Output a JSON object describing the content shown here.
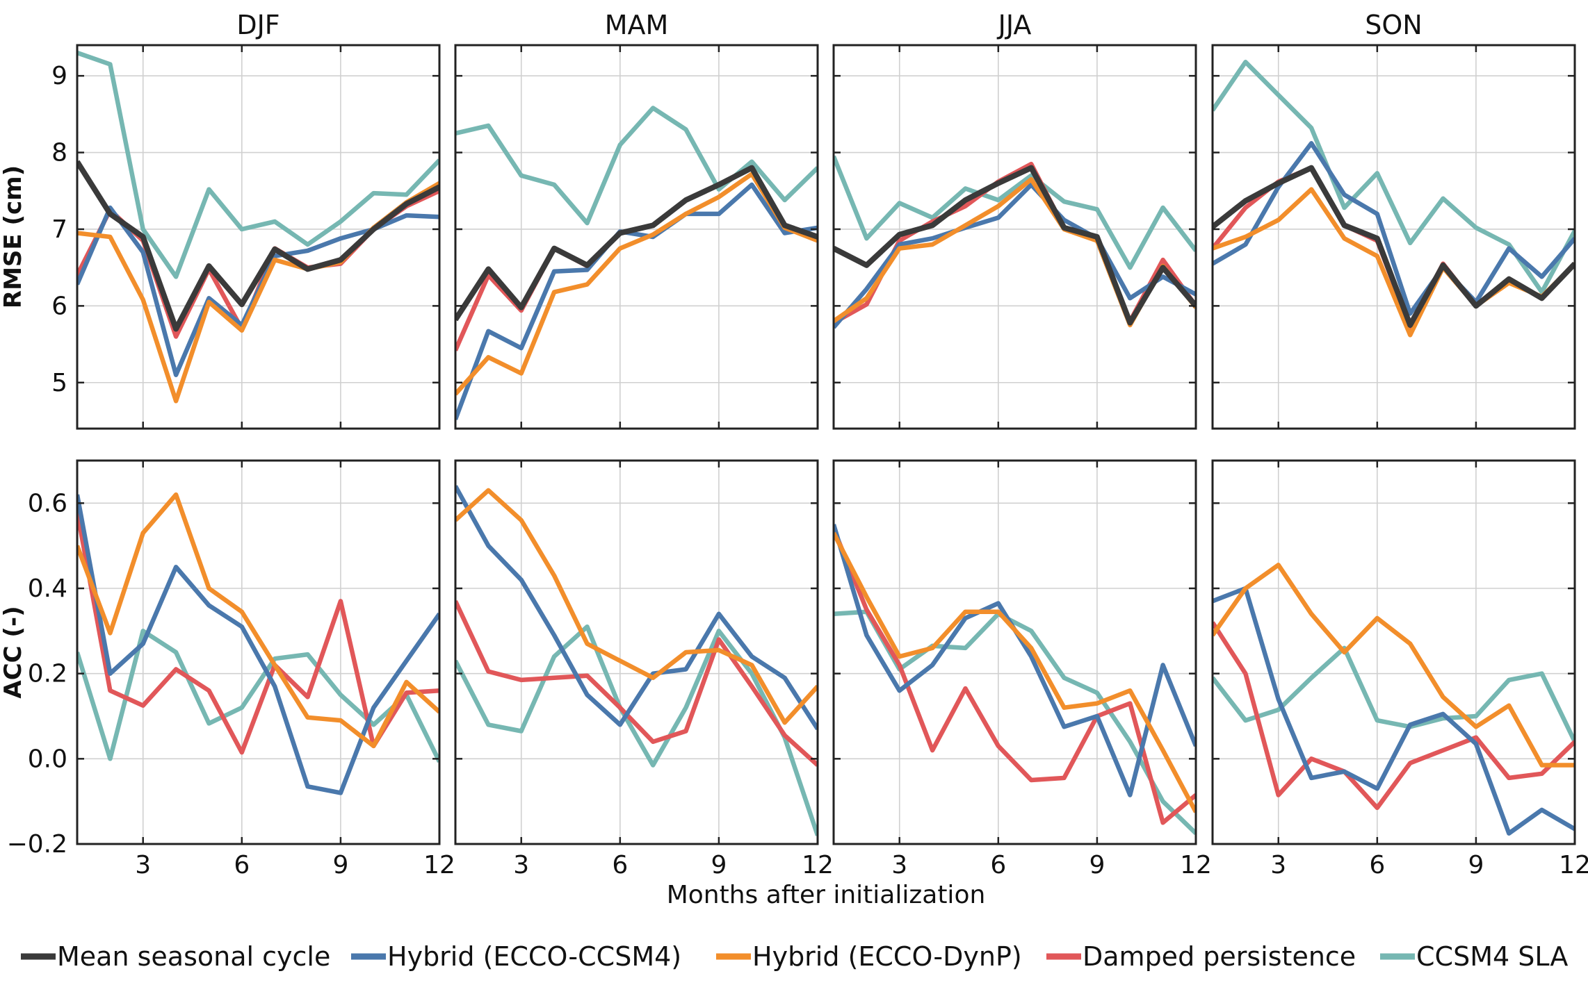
{
  "chart_data": {
    "type": "line",
    "xlabel": "Months after initialization",
    "x": [
      1,
      2,
      3,
      4,
      5,
      6,
      7,
      8,
      9,
      10,
      11,
      12
    ],
    "xticks": [
      3,
      6,
      9,
      12
    ],
    "xlim": [
      1,
      12
    ],
    "columns": [
      "DJF",
      "MAM",
      "JJA",
      "SON"
    ],
    "rows": [
      {
        "ylabel": "RMSE (cm)",
        "ylim": [
          4.4,
          9.4
        ],
        "yticks": [
          5,
          6,
          7,
          8,
          9
        ],
        "ytick_labels": [
          "5",
          "6",
          "7",
          "8",
          "9"
        ]
      },
      {
        "ylabel": "ACC (-)",
        "ylim": [
          -0.2,
          0.7
        ],
        "yticks": [
          -0.2,
          0.0,
          0.2,
          0.4,
          0.6
        ],
        "ytick_labels": [
          "−0.2",
          "0.0",
          "0.2",
          "0.4",
          "0.6"
        ]
      }
    ],
    "grid": true,
    "legend": {
      "position": "bottom",
      "entries": [
        {
          "key": "mean",
          "label": "Mean seasonal cycle",
          "color": "#3a3a3a"
        },
        {
          "key": "hybrid_ccsm4",
          "label": "Hybrid (ECCO-CCSM4)",
          "color": "#4a78ac"
        },
        {
          "key": "hybrid_dynp",
          "label": "Hybrid (ECCO-DynP)",
          "color": "#f28e2b"
        },
        {
          "key": "damped",
          "label": "Damped persistence",
          "color": "#e15759"
        },
        {
          "key": "ccsm4_sla",
          "label": "CCSM4 SLA",
          "color": "#76b7b2"
        }
      ]
    },
    "draw_order": [
      "ccsm4_sla",
      "damped",
      "hybrid_ccsm4",
      "hybrid_dynp",
      "mean"
    ],
    "panels": [
      {
        "row": 0,
        "col": 0,
        "title": "DJF",
        "series": {
          "mean": [
            7.88,
            7.2,
            6.9,
            5.7,
            6.52,
            6.02,
            6.74,
            6.48,
            6.6,
            7.0,
            7.33,
            7.55
          ],
          "hybrid_ccsm4": [
            6.28,
            7.28,
            6.7,
            5.1,
            6.1,
            5.75,
            6.65,
            6.72,
            6.88,
            7.0,
            7.18,
            7.16
          ],
          "hybrid_dynp": [
            6.95,
            6.9,
            6.08,
            4.76,
            6.05,
            5.68,
            6.6,
            6.48,
            6.57,
            7.02,
            7.35,
            7.6
          ],
          "damped": [
            6.4,
            7.25,
            6.85,
            5.6,
            6.48,
            5.7,
            6.75,
            6.5,
            6.55,
            7.0,
            7.3,
            7.5
          ],
          "ccsm4_sla": [
            9.3,
            9.15,
            7.0,
            6.38,
            7.52,
            7.0,
            7.1,
            6.8,
            7.1,
            7.47,
            7.45,
            7.9
          ]
        }
      },
      {
        "row": 0,
        "col": 1,
        "title": "MAM",
        "series": {
          "mean": [
            5.82,
            6.48,
            5.98,
            6.75,
            6.53,
            6.95,
            7.05,
            7.38,
            7.58,
            7.8,
            7.05,
            6.9
          ],
          "hybrid_ccsm4": [
            4.52,
            5.67,
            5.45,
            6.45,
            6.47,
            6.97,
            6.9,
            7.2,
            7.2,
            7.58,
            6.95,
            7.02
          ],
          "hybrid_dynp": [
            4.85,
            5.33,
            5.12,
            6.18,
            6.28,
            6.75,
            6.93,
            7.2,
            7.42,
            7.72,
            7.02,
            6.85
          ],
          "damped": [
            5.42,
            6.4,
            5.94,
            6.75,
            6.52,
            6.95,
            7.05,
            7.38,
            7.58,
            7.8,
            7.02,
            6.9
          ],
          "ccsm4_sla": [
            8.25,
            8.35,
            7.7,
            7.58,
            7.08,
            8.1,
            8.58,
            8.3,
            7.52,
            7.88,
            7.38,
            7.8
          ]
        }
      },
      {
        "row": 0,
        "col": 2,
        "title": "JJA",
        "series": {
          "mean": [
            6.75,
            6.53,
            6.93,
            7.05,
            7.38,
            7.6,
            7.8,
            7.02,
            6.9,
            5.78,
            6.5,
            6.0
          ],
          "hybrid_ccsm4": [
            5.72,
            6.22,
            6.8,
            6.88,
            7.02,
            7.15,
            7.58,
            7.12,
            6.88,
            6.1,
            6.38,
            6.15
          ],
          "hybrid_dynp": [
            5.8,
            6.1,
            6.75,
            6.8,
            7.05,
            7.3,
            7.65,
            7.0,
            6.85,
            5.75,
            6.52,
            5.98
          ],
          "damped": [
            5.78,
            6.02,
            6.85,
            7.1,
            7.3,
            7.62,
            7.85,
            7.02,
            6.88,
            5.8,
            6.6,
            6.0
          ],
          "ccsm4_sla": [
            7.95,
            6.88,
            7.34,
            7.15,
            7.53,
            7.38,
            7.7,
            7.36,
            7.26,
            6.5,
            7.28,
            6.72
          ]
        }
      },
      {
        "row": 0,
        "col": 3,
        "title": "SON",
        "series": {
          "mean": [
            7.03,
            7.37,
            7.6,
            7.8,
            7.05,
            6.88,
            5.75,
            6.53,
            6.0,
            6.35,
            6.1,
            6.55
          ],
          "hybrid_ccsm4": [
            6.55,
            6.8,
            7.55,
            8.12,
            7.45,
            7.2,
            5.9,
            6.5,
            6.05,
            6.75,
            6.38,
            6.88
          ],
          "hybrid_dynp": [
            6.75,
            6.9,
            7.12,
            7.52,
            6.88,
            6.65,
            5.62,
            6.5,
            6.0,
            6.3,
            6.12,
            6.55
          ],
          "damped": [
            6.75,
            7.28,
            7.62,
            7.8,
            7.05,
            6.85,
            5.72,
            6.55,
            6.0,
            6.35,
            6.1,
            6.55
          ],
          "ccsm4_sla": [
            8.55,
            9.18,
            8.75,
            8.32,
            7.28,
            7.73,
            6.82,
            7.4,
            7.02,
            6.8,
            6.18,
            6.98
          ]
        }
      },
      {
        "row": 1,
        "col": 0,
        "title": "",
        "series": {
          "hybrid_ccsm4": [
            0.62,
            0.2,
            0.27,
            0.45,
            0.36,
            0.31,
            0.17,
            -0.065,
            -0.08,
            0.12,
            0.23,
            0.34
          ],
          "hybrid_dynp": [
            0.5,
            0.295,
            0.53,
            0.62,
            0.4,
            0.345,
            0.22,
            0.097,
            0.09,
            0.03,
            0.18,
            0.11
          ],
          "damped": [
            0.58,
            0.16,
            0.125,
            0.21,
            0.16,
            0.015,
            0.22,
            0.145,
            0.37,
            0.03,
            0.155,
            0.16
          ],
          "ccsm4_sla": [
            0.25,
            0.0,
            0.3,
            0.25,
            0.083,
            0.12,
            0.235,
            0.245,
            0.15,
            0.08,
            0.15,
            -0.007
          ]
        }
      },
      {
        "row": 1,
        "col": 1,
        "title": "",
        "series": {
          "hybrid_ccsm4": [
            0.64,
            0.5,
            0.42,
            0.29,
            0.15,
            0.08,
            0.2,
            0.21,
            0.34,
            0.24,
            0.19,
            0.07
          ],
          "hybrid_dynp": [
            0.56,
            0.63,
            0.56,
            0.43,
            0.27,
            0.23,
            0.19,
            0.25,
            0.255,
            0.22,
            0.085,
            0.17
          ],
          "damped": [
            0.37,
            0.205,
            0.185,
            0.19,
            0.195,
            0.12,
            0.04,
            0.065,
            0.28,
            0.17,
            0.055,
            -0.015
          ],
          "ccsm4_sla": [
            0.23,
            0.08,
            0.065,
            0.24,
            0.31,
            0.12,
            -0.015,
            0.12,
            0.3,
            0.2,
            0.05,
            -0.18
          ]
        }
      },
      {
        "row": 1,
        "col": 2,
        "title": "",
        "series": {
          "hybrid_ccsm4": [
            0.55,
            0.29,
            0.16,
            0.22,
            0.33,
            0.365,
            0.24,
            0.075,
            0.1,
            -0.085,
            0.22,
            0.03
          ],
          "hybrid_dynp": [
            0.53,
            0.38,
            0.24,
            0.26,
            0.345,
            0.345,
            0.26,
            0.12,
            0.13,
            0.16,
            0.02,
            -0.125
          ],
          "damped": [
            0.54,
            0.35,
            0.22,
            0.02,
            0.165,
            0.03,
            -0.05,
            -0.045,
            0.1,
            0.13,
            -0.15,
            -0.085
          ],
          "ccsm4_sla": [
            0.34,
            0.345,
            0.21,
            0.265,
            0.26,
            0.34,
            0.3,
            0.19,
            0.155,
            0.04,
            -0.1,
            -0.175
          ]
        }
      },
      {
        "row": 1,
        "col": 3,
        "title": "",
        "series": {
          "hybrid_ccsm4": [
            0.37,
            0.4,
            0.14,
            -0.045,
            -0.03,
            -0.07,
            0.08,
            0.105,
            0.035,
            -0.175,
            -0.12,
            -0.165
          ],
          "hybrid_dynp": [
            0.29,
            0.4,
            0.455,
            0.34,
            0.25,
            0.33,
            0.27,
            0.145,
            0.075,
            0.125,
            -0.015,
            -0.015
          ],
          "damped": [
            0.32,
            0.2,
            -0.085,
            0.0,
            -0.03,
            -0.115,
            -0.01,
            0.02,
            0.05,
            -0.045,
            -0.035,
            0.04
          ],
          "ccsm4_sla": [
            0.19,
            0.09,
            0.115,
            0.19,
            0.26,
            0.09,
            0.075,
            0.095,
            0.1,
            0.185,
            0.2,
            0.04
          ]
        }
      }
    ]
  }
}
